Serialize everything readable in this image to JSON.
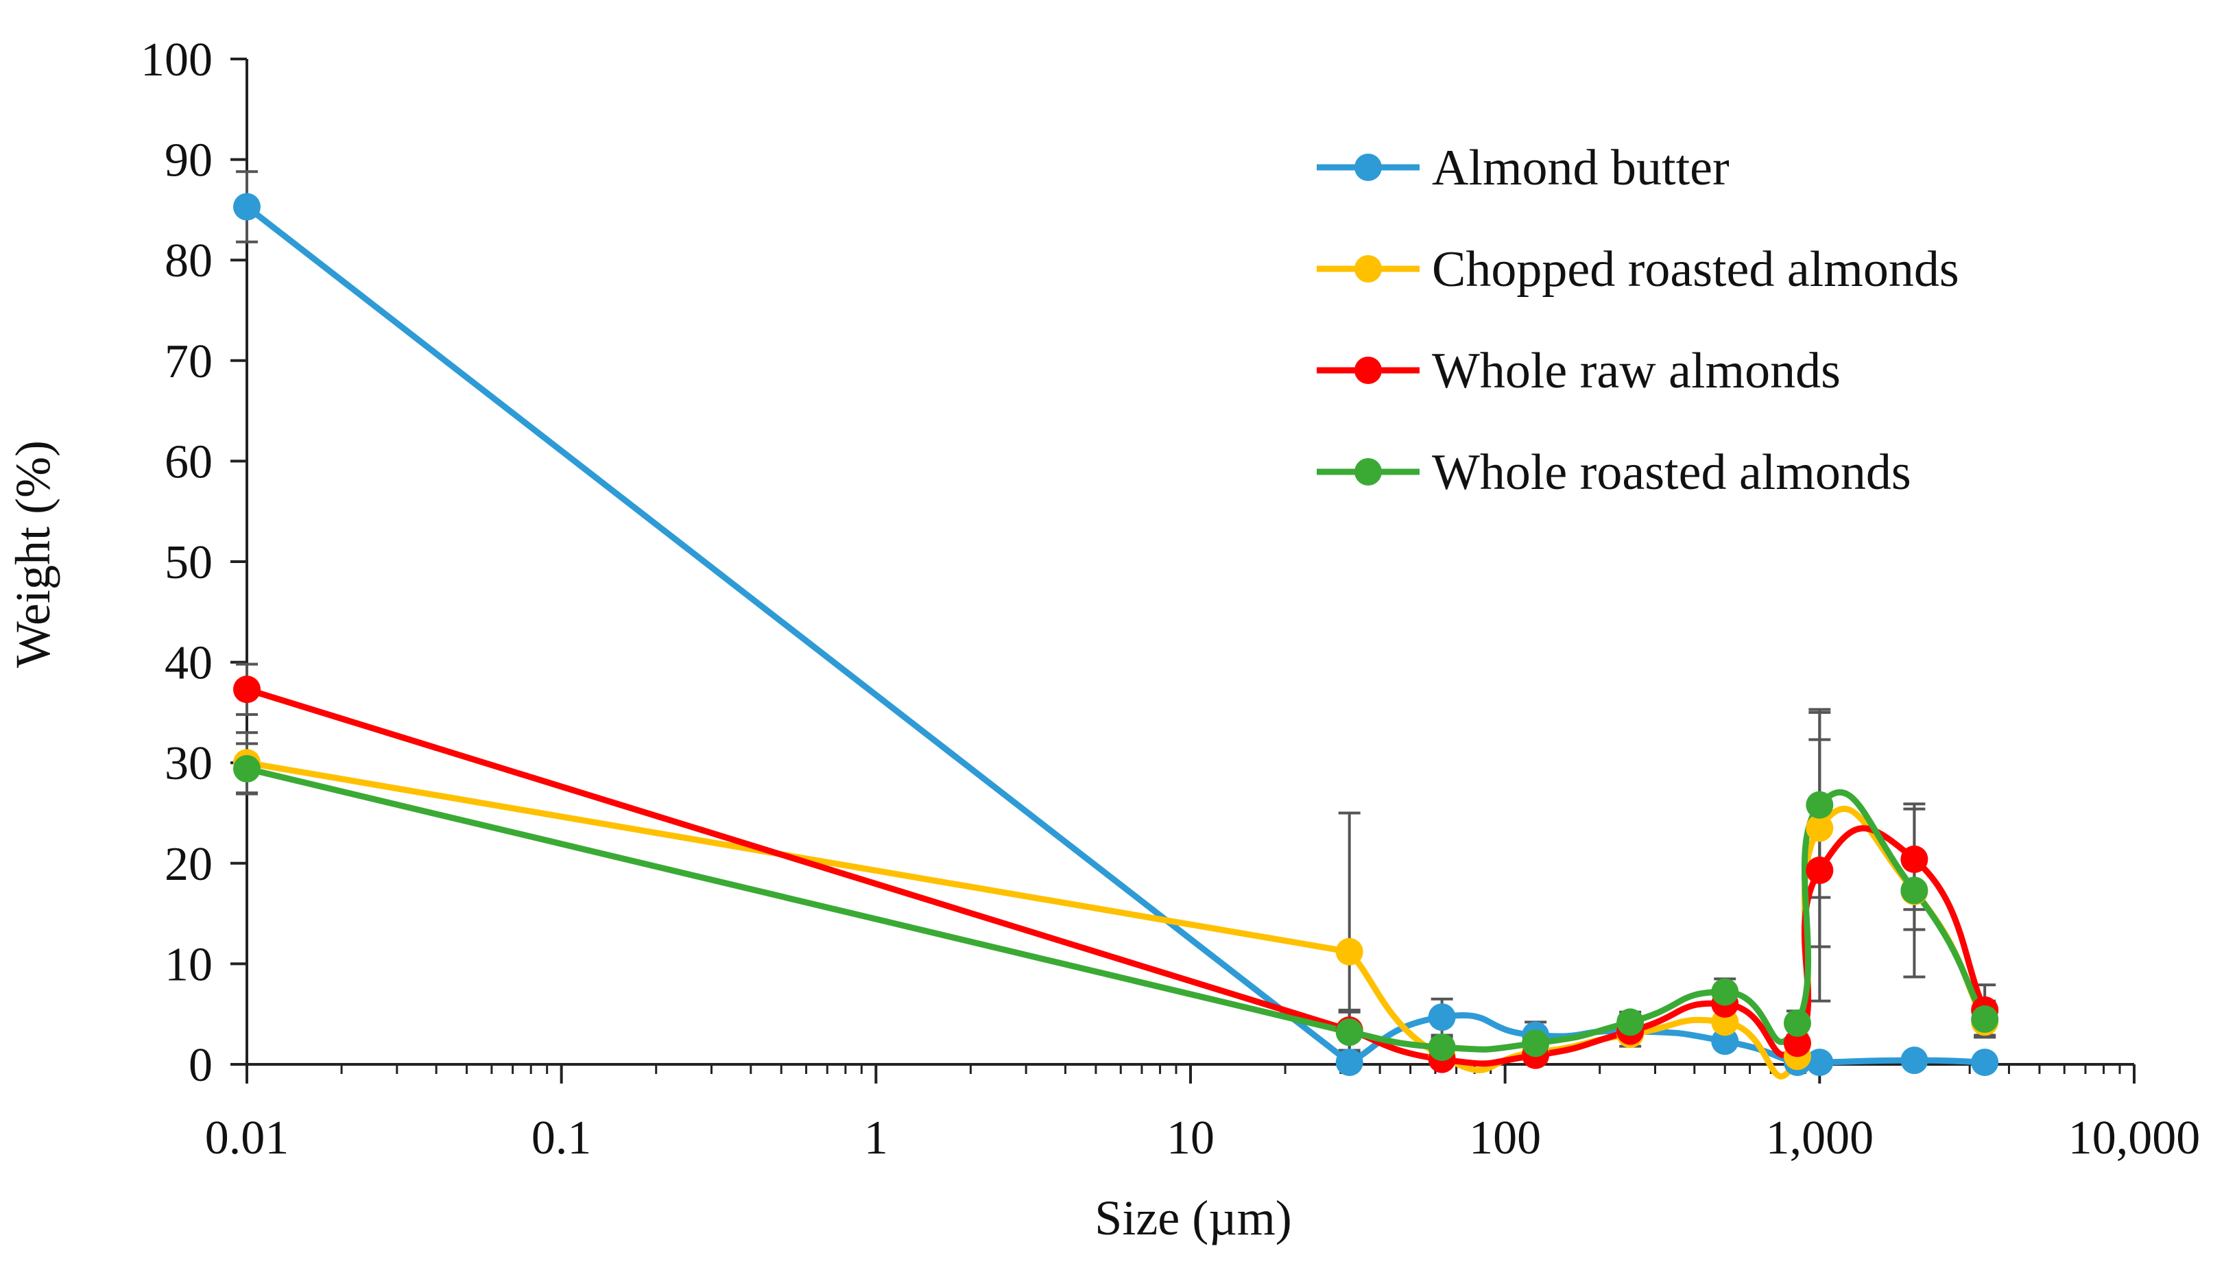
{
  "chart_data": {
    "type": "line",
    "title": "",
    "xlabel": "Size (µm)",
    "ylabel": "Weight (%)",
    "xscale": "log",
    "xlim": [
      0.01,
      10000
    ],
    "ylim": [
      0,
      100
    ],
    "yticks": [
      0,
      10,
      20,
      30,
      40,
      50,
      60,
      70,
      80,
      90,
      100
    ],
    "xticks": [
      0.01,
      0.1,
      1,
      10,
      100,
      1000,
      10000
    ],
    "xtick_labels": [
      "0.01",
      "0.1",
      "1",
      "10",
      "100",
      "1,000",
      "10,000"
    ],
    "ytick_labels": [
      "0",
      "10",
      "20",
      "30",
      "40",
      "50",
      "60",
      "70",
      "80",
      "90",
      "100"
    ],
    "legend_position": "top-right",
    "x": [
      0.01,
      32,
      63,
      125,
      250,
      500,
      850,
      1000,
      2000,
      3350
    ],
    "series": [
      {
        "name": "Almond butter",
        "color": "#2E9BD6",
        "values": [
          85.3,
          0.2,
          4.7,
          2.9,
          3.3,
          2.3,
          0.2,
          0.2,
          0.4,
          0.2
        ],
        "errors": [
          3.5,
          0.5,
          1.8,
          1.3,
          0.8,
          0.6,
          0.3,
          0.3,
          0.3,
          0.3
        ]
      },
      {
        "name": "Chopped roasted almonds",
        "color": "#FFC000",
        "values": [
          30.0,
          11.2,
          0.8,
          1.2,
          3.0,
          4.2,
          0.8,
          23.5,
          17.2,
          4.2
        ],
        "errors": [
          3.0,
          13.8,
          1.0,
          0.8,
          1.2,
          1.5,
          0.8,
          11.8,
          3.8,
          1.5
        ]
      },
      {
        "name": "Whole raw almonds",
        "color": "#FF0000",
        "values": [
          37.3,
          3.4,
          0.5,
          0.9,
          3.3,
          6.0,
          2.1,
          19.3,
          20.4,
          5.4
        ],
        "errors": [
          2.5,
          2.0,
          0.6,
          0.6,
          1.0,
          1.2,
          0.8,
          13.0,
          5.0,
          2.5
        ]
      },
      {
        "name": "Whole roasted almonds",
        "color": "#3AAA35",
        "values": [
          29.4,
          3.2,
          1.7,
          2.1,
          4.2,
          7.2,
          4.1,
          25.8,
          17.3,
          4.5
        ],
        "errors": [
          2.5,
          2.0,
          1.0,
          0.8,
          1.0,
          1.3,
          1.2,
          9.2,
          8.6,
          1.8
        ]
      }
    ]
  }
}
